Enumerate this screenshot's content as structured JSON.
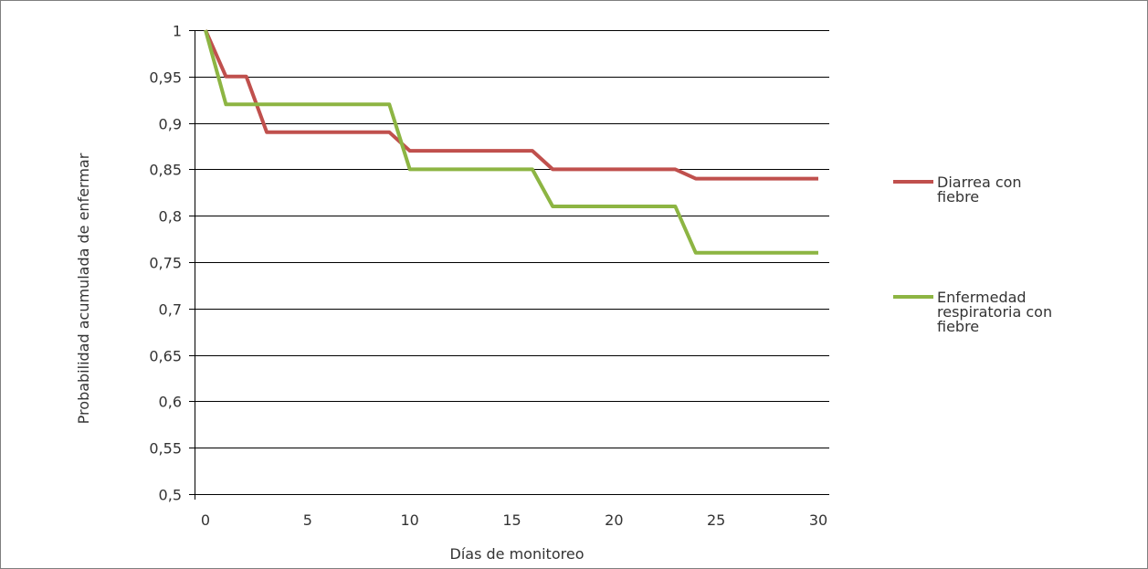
{
  "chart_data": {
    "type": "line",
    "title": "",
    "xlabel": "Días de monitoreo",
    "ylabel": "Probabilidad acumulada de enfermar",
    "xlim": [
      0,
      30
    ],
    "ylim": [
      0.5,
      1
    ],
    "x_ticks": [
      {
        "value": 0,
        "label": "0"
      },
      {
        "value": 5,
        "label": "5"
      },
      {
        "value": 10,
        "label": "10"
      },
      {
        "value": 15,
        "label": "15"
      },
      {
        "value": 20,
        "label": "20"
      },
      {
        "value": 25,
        "label": "25"
      },
      {
        "value": 30,
        "label": "30"
      }
    ],
    "y_ticks": [
      {
        "value": 0.5,
        "label": "0,5"
      },
      {
        "value": 0.55,
        "label": "0,55"
      },
      {
        "value": 0.6,
        "label": "0,6"
      },
      {
        "value": 0.65,
        "label": "0,65"
      },
      {
        "value": 0.7,
        "label": "0,7"
      },
      {
        "value": 0.75,
        "label": "0,75"
      },
      {
        "value": 0.8,
        "label": "0,8"
      },
      {
        "value": 0.85,
        "label": "0,85"
      },
      {
        "value": 0.9,
        "label": "0,9"
      },
      {
        "value": 0.95,
        "label": "0,95"
      },
      {
        "value": 1,
        "label": "1"
      }
    ],
    "grid": "horizontal",
    "legend_position": "right",
    "series": [
      {
        "name_lines": [
          "Diarrea con",
          "fiebre"
        ],
        "color": "#c0504d",
        "points": [
          [
            0,
            1
          ],
          [
            1,
            0.95
          ],
          [
            2,
            0.95
          ],
          [
            3,
            0.89
          ],
          [
            9,
            0.89
          ],
          [
            10,
            0.87
          ],
          [
            16,
            0.87
          ],
          [
            17,
            0.85
          ],
          [
            23,
            0.85
          ],
          [
            24,
            0.84
          ],
          [
            30,
            0.84
          ]
        ]
      },
      {
        "name_lines": [
          "Enfermedad",
          "respiratoria con",
          "fiebre"
        ],
        "color": "#8db543",
        "points": [
          [
            0,
            1
          ],
          [
            1,
            0.92
          ],
          [
            9,
            0.92
          ],
          [
            10,
            0.85
          ],
          [
            16,
            0.85
          ],
          [
            17,
            0.81
          ],
          [
            23,
            0.81
          ],
          [
            24,
            0.76
          ],
          [
            30,
            0.76
          ]
        ]
      }
    ]
  }
}
